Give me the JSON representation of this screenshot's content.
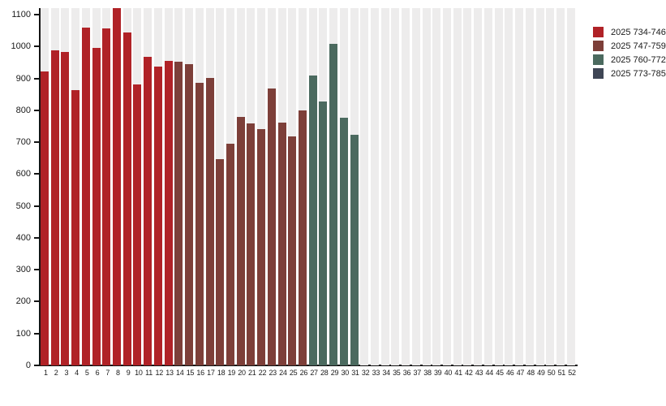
{
  "chart_data": {
    "type": "bar",
    "title": "",
    "xlabel": "",
    "ylabel": "",
    "ylim": [
      0,
      1100
    ],
    "ytick_interval": 100,
    "grid": false,
    "background_stripes": true,
    "legend_position": "top-right",
    "x_categories": [
      "1",
      "2",
      "3",
      "4",
      "5",
      "6",
      "7",
      "8",
      "9",
      "10",
      "11",
      "12",
      "13",
      "14",
      "15",
      "16",
      "17",
      "18",
      "19",
      "20",
      "21",
      "22",
      "23",
      "24",
      "25",
      "26",
      "27",
      "28",
      "29",
      "30",
      "31",
      "32",
      "33",
      "34",
      "35",
      "36",
      "37",
      "38",
      "39",
      "40",
      "41",
      "42",
      "43",
      "44",
      "45",
      "46",
      "47",
      "48",
      "49",
      "50",
      "51",
      "52"
    ],
    "values": [
      922,
      989,
      983,
      864,
      1059,
      996,
      1057,
      1120,
      1043,
      880,
      967,
      938,
      955,
      952,
      946,
      886,
      902,
      648,
      694,
      779,
      758,
      741,
      868,
      762,
      719,
      799,
      908,
      827,
      1009,
      777,
      723,
      null,
      null,
      null,
      null,
      null,
      null,
      null,
      null,
      null,
      null,
      null,
      null,
      null,
      null,
      null,
      null,
      null,
      null,
      null,
      null,
      null
    ],
    "group_size": 13,
    "legend": [
      {
        "label": "2025 734-746",
        "color": "#B02227",
        "weeks": "1-13"
      },
      {
        "label": "2025 747-759",
        "color": "#7D3F39",
        "weeks": "14-26"
      },
      {
        "label": "2025 760-772",
        "color": "#4B6A5F",
        "weeks": "27-39"
      },
      {
        "label": "2025 773-785",
        "color": "#3F4655",
        "weeks": "40-52"
      }
    ],
    "colors": {
      "stripe": "#EDECEC",
      "axis": "#141414",
      "label_text": "#1a1a1a",
      "background": "#ffffff"
    }
  }
}
